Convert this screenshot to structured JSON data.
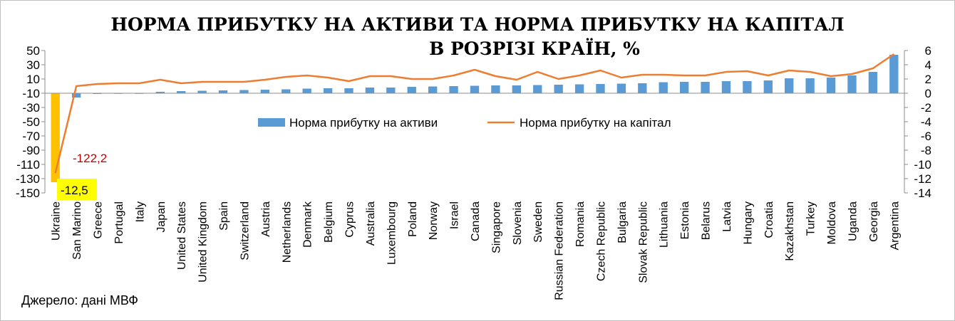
{
  "chart_data": {
    "type": "bar",
    "title_line1": "НОРМА ПРИБУТКУ НА АКТИВИ ТА НОРМА ПРИБУТКУ НА КАПІТАЛ",
    "title_line2": "В РОЗРІЗІ КРАЇН, %",
    "categories": [
      "Ukraine",
      "San Marino",
      "Greece",
      "Portugal",
      "Italy",
      "Japan",
      "United States",
      "United Kingdom",
      "Spain",
      "Switzerland",
      "Austria",
      "Netherlands",
      "Denmark",
      "Belgium",
      "Cyprus",
      "Australia",
      "Luxembourg",
      "Poland",
      "Norway",
      "Israel",
      "Canada",
      "Singapore",
      "Slovenia",
      "Sweden",
      "Russian Federation",
      "Romania",
      "Czech Republic",
      "Bulgaria",
      "Slovak Republic",
      "Lithuania",
      "Estonia",
      "Belarus",
      "Latvia",
      "Hungary",
      "Croatia",
      "Kazakhstan",
      "Turkey",
      "Moldova",
      "Uganda",
      "Georgia",
      "Argentina"
    ],
    "series": [
      {
        "name": "Норма прибутку на активи",
        "axis": "right",
        "color": "#5b9bd5",
        "highlight": {
          "index": 0,
          "color": "#ffc000"
        },
        "values": [
          -12.5,
          -0.6,
          -0.1,
          -0.05,
          -0.02,
          0.2,
          0.3,
          0.35,
          0.4,
          0.45,
          0.5,
          0.55,
          0.65,
          0.7,
          0.7,
          0.8,
          0.8,
          0.9,
          0.95,
          1.0,
          1.05,
          1.1,
          1.1,
          1.15,
          1.2,
          1.25,
          1.3,
          1.35,
          1.4,
          1.55,
          1.6,
          1.6,
          1.7,
          1.7,
          1.8,
          2.1,
          2.1,
          2.2,
          2.5,
          3.0,
          5.4
        ]
      },
      {
        "name": "Норма прибутку на капітал",
        "axis": "left",
        "color": "#ed7d31",
        "values": [
          -122.2,
          0,
          3,
          4,
          4,
          9,
          4,
          6,
          6,
          6,
          9,
          13,
          15,
          12,
          7,
          14,
          14,
          10,
          10,
          15,
          23,
          14,
          9,
          20,
          10,
          15,
          22,
          12,
          16,
          16,
          15,
          15,
          20,
          21,
          15,
          22,
          20,
          14,
          17,
          25,
          45
        ]
      }
    ],
    "left_axis": {
      "min": -150,
      "max": 50,
      "ticks": [
        "50",
        "30",
        "10",
        "-10",
        "-30",
        "-50",
        "-70",
        "-90",
        "-110",
        "-130",
        "-150"
      ]
    },
    "right_axis": {
      "min": -14,
      "max": 6,
      "ticks": [
        "6",
        "4",
        "2",
        "0",
        "-2",
        "-4",
        "-6",
        "-8",
        "-10",
        "-12",
        "-14"
      ]
    },
    "legend": {
      "placement": "top-center"
    },
    "annotations": {
      "roe_ukraine": "-122,2",
      "roa_ukraine": "-12,5",
      "roa_box_color": "#ffff00"
    }
  },
  "source": "Джерело: дані МВФ"
}
